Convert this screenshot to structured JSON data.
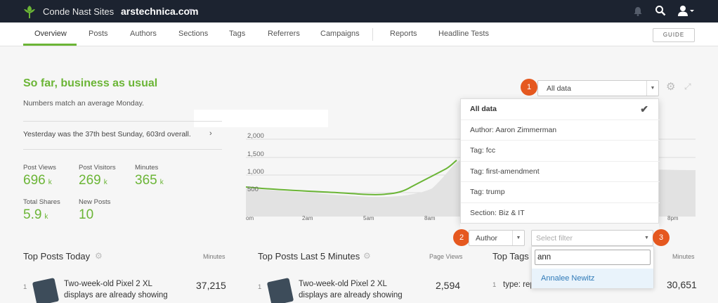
{
  "topbar": {
    "brand": "Conde Nast Sites",
    "site": "arstechnica.com",
    "icons": [
      "leaf-logo",
      "bell-icon",
      "search-icon",
      "user-icon"
    ]
  },
  "nav": {
    "tabs": [
      "Overview",
      "Posts",
      "Authors",
      "Sections",
      "Tags",
      "Referrers",
      "Campaigns",
      "Reports",
      "Headline Tests"
    ],
    "active": "Overview",
    "guide": "GUIDE"
  },
  "summary": {
    "headline": "So far, business as usual",
    "subline": "Numbers match an average Monday.",
    "yesterday": "Yesterday was the 37th best Sunday, 603rd overall."
  },
  "stats": [
    {
      "label": "Post Views",
      "value": "696",
      "unit": "k"
    },
    {
      "label": "Post Visitors",
      "value": "269",
      "unit": "k"
    },
    {
      "label": "Minutes",
      "value": "365",
      "unit": "k"
    },
    {
      "label": "Total Shares",
      "value": "5.9",
      "unit": "k"
    },
    {
      "label": "New Posts",
      "value": "10",
      "unit": ""
    }
  ],
  "chart_data": {
    "type": "area",
    "y_ticks": [
      "2,000",
      "1,500",
      "1,000",
      "500"
    ],
    "x_ticks": [
      "om",
      "2am",
      "5am",
      "8am",
      "8pm"
    ],
    "ylim": [
      0,
      2000
    ]
  },
  "panels": {
    "top_posts_today": {
      "title": "Top Posts Today",
      "metric_label": "Minutes",
      "rank": "1",
      "post": "Two-week-old Pixel 2 XL displays are already showing",
      "value": "37,215"
    },
    "top_posts_5min": {
      "title": "Top Posts Last 5 Minutes",
      "metric_label": "Page Views",
      "rank": "1",
      "post": "Two-week-old Pixel 2 XL displays are already showing",
      "value": "2,594"
    },
    "top_tags": {
      "title": "Top Tags",
      "metric_label": "Minutes",
      "rank": "1",
      "post": "type: rep",
      "value": "30,651"
    }
  },
  "filter": {
    "badges": [
      "1",
      "2",
      "3"
    ],
    "data_select": "All data",
    "options": [
      "All data",
      "Author: Aaron Zimmerman",
      "Tag: fcc",
      "Tag: first-amendment",
      "Tag: trump",
      "Section: Biz & IT"
    ],
    "selected": "All data",
    "type_select": "Author",
    "filter_placeholder": "Select filter",
    "search_value": "ann",
    "result": "Annalee Newitz"
  },
  "colors": {
    "accent": "#6bb536",
    "badge": "#e5581f",
    "topbar": "#1c2330",
    "link": "#2f7ab8"
  }
}
